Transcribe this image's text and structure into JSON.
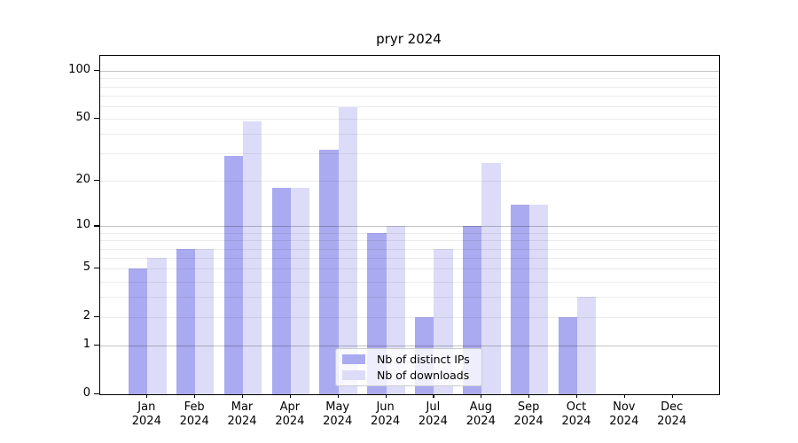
{
  "chart_data": {
    "type": "bar",
    "title": "pryr 2024",
    "months": [
      "Jan",
      "Feb",
      "Mar",
      "Apr",
      "May",
      "Jun",
      "Jul",
      "Aug",
      "Sep",
      "Oct",
      "Nov",
      "Dec"
    ],
    "year": "2024",
    "categories": [
      "Jan 2024",
      "Feb 2024",
      "Mar 2024",
      "Apr 2024",
      "May 2024",
      "Jun 2024",
      "Jul 2024",
      "Aug 2024",
      "Sep 2024",
      "Oct 2024",
      "Nov 2024",
      "Dec 2024"
    ],
    "series": [
      {
        "name": "Nb of distinct IPs",
        "color": "#aaaaf0",
        "values": [
          5,
          7,
          29,
          18,
          32,
          9,
          2,
          10,
          14,
          2,
          0,
          0
        ]
      },
      {
        "name": "Nb of downloads",
        "color": "#dcdcf8",
        "values": [
          6,
          7,
          48,
          18,
          59,
          10,
          7,
          26,
          14,
          3,
          0,
          0
        ]
      }
    ],
    "y_axis": {
      "scale": "log10(value+1)",
      "tick_values": [
        0,
        1,
        2,
        5,
        10,
        20,
        50,
        100
      ],
      "tick_labels": [
        "0",
        "1",
        "2",
        "5",
        "10",
        "20",
        "50",
        "100"
      ],
      "top_value": 124
    },
    "grid": {
      "minor_values": [
        2,
        3,
        4,
        5,
        6,
        7,
        8,
        9,
        20,
        30,
        40,
        50,
        60,
        70,
        80,
        90
      ],
      "major_values": [
        1,
        10,
        100
      ],
      "drawn_over_bars": true
    },
    "legend": {
      "position": "lower center, inside plot",
      "entries": [
        "Nb of distinct IPs",
        "Nb of downloads"
      ]
    }
  },
  "colors": {
    "bar_distinct_ips": "#aaaaf0",
    "bar_downloads": "#dcdcf8",
    "axis": "#000000",
    "legend_border": "#cccccc"
  }
}
